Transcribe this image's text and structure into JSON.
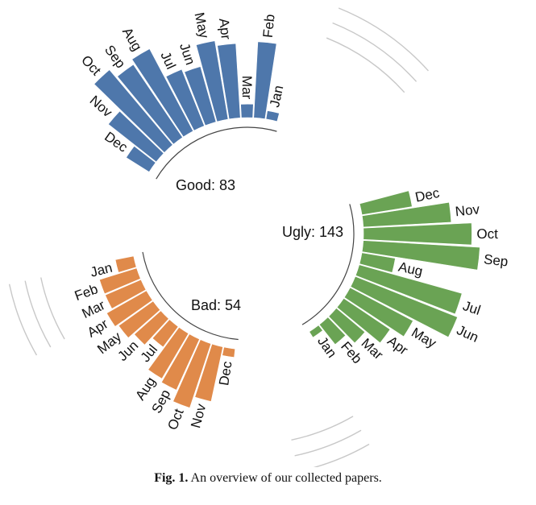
{
  "caption": {
    "label": "Fig. 1.",
    "text": "An overview of our collected papers."
  },
  "chart_data": {
    "type": "radial-bar",
    "groups": [
      {
        "name": "Good",
        "total": 83,
        "center_label": "Good: 83",
        "color": "#4e77ab",
        "months": [
          "Jan",
          "Feb",
          "Mar",
          "Apr",
          "May",
          "Jun",
          "Jul",
          "Aug",
          "Sep",
          "Oct",
          "Nov",
          "Dec"
        ],
        "values": [
          0.5,
          4.5,
          0.8,
          4.4,
          4.7,
          3.4,
          3.6,
          5.5,
          5.2,
          5.8,
          3.6,
          1.6
        ]
      },
      {
        "name": "Ugly",
        "total": 143,
        "center_label": "Ugly: 143",
        "color": "#6aa354",
        "months": [
          "Jan",
          "Feb",
          "Mar",
          "Apr",
          "May",
          "Jun",
          "Jul",
          "Aug",
          "Sep",
          "Oct",
          "Nov",
          "Dec"
        ],
        "values": [
          0.4,
          1.5,
          2.2,
          3.3,
          4.2,
          6.5,
          6.3,
          2.0,
          6.9,
          6.4,
          5.2,
          3.0
        ]
      },
      {
        "name": "Bad",
        "total": 54,
        "center_label": "Bad: 54",
        "color": "#e08a4a",
        "months": [
          "Jan",
          "Feb",
          "Mar",
          "Apr",
          "May",
          "Jun",
          "Jul",
          "Aug",
          "Sep",
          "Oct",
          "Nov",
          "Dec"
        ],
        "values": [
          1.1,
          2.3,
          2.3,
          2.7,
          2.5,
          2.1,
          1.5,
          3.1,
          3.3,
          4.0,
          3.3,
          0.5
        ]
      }
    ]
  }
}
